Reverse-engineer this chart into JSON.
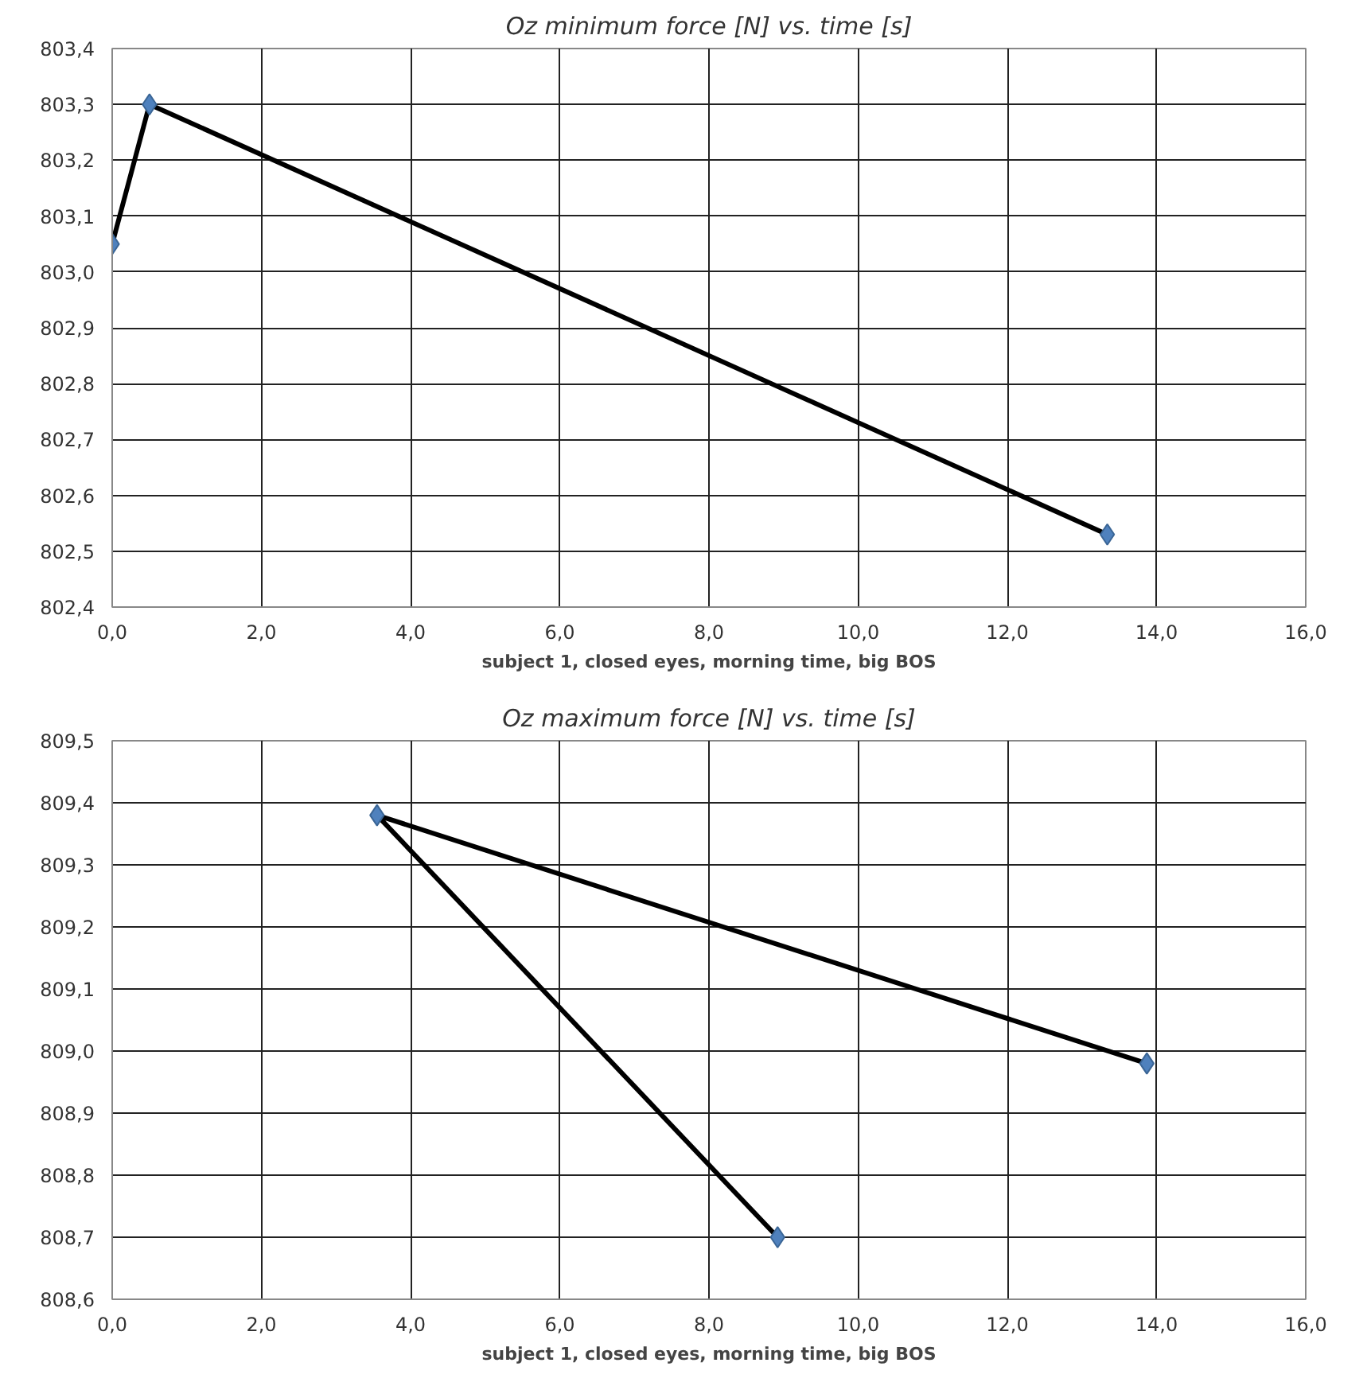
{
  "chart_data": [
    {
      "type": "line",
      "title": "Oz minimum force [N] vs. time [s]",
      "xlabel": "subject 1, closed eyes, morning time, big BOS",
      "series": [
        {
          "color": "#000000",
          "x": [
            0.0,
            0.5,
            13.34
          ],
          "values": [
            803.05,
            803.3,
            802.53
          ]
        }
      ],
      "marker": "diamond",
      "grid": true,
      "xlim": [
        0,
        16
      ],
      "xticks": [
        {
          "value": 0,
          "label": "0,0"
        },
        {
          "value": 2,
          "label": "2,0"
        },
        {
          "value": 4,
          "label": "4,0"
        },
        {
          "value": 6,
          "label": "6,0"
        },
        {
          "value": 8,
          "label": "8,0"
        },
        {
          "value": 10,
          "label": "10,0"
        },
        {
          "value": 12,
          "label": "12,0"
        },
        {
          "value": 14,
          "label": "14,0"
        },
        {
          "value": 16,
          "label": "16,0"
        }
      ],
      "ylim": [
        802.4,
        803.4
      ],
      "yticks": [
        {
          "value": 802.4,
          "label": "802,4"
        },
        {
          "value": 802.5,
          "label": "802,5"
        },
        {
          "value": 802.6,
          "label": "802,6"
        },
        {
          "value": 802.7,
          "label": "802,7"
        },
        {
          "value": 802.8,
          "label": "802,8"
        },
        {
          "value": 802.9,
          "label": "802,9"
        },
        {
          "value": 803.0,
          "label": "803,0"
        },
        {
          "value": 803.1,
          "label": "803,1"
        },
        {
          "value": 803.2,
          "label": "803,2"
        },
        {
          "value": 803.3,
          "label": "803,3"
        },
        {
          "value": 803.4,
          "label": "803,4"
        }
      ]
    },
    {
      "type": "line",
      "title": "Oz maximum force [N] vs. time [s]",
      "xlabel": "subject 1, closed eyes, morning time, big BOS",
      "series": [
        {
          "color": "#000000",
          "x": [
            13.87,
            3.55,
            8.92
          ],
          "values": [
            808.98,
            809.38,
            808.7
          ]
        }
      ],
      "marker": "diamond",
      "grid": true,
      "xlim": [
        0,
        16
      ],
      "xticks": [
        {
          "value": 0,
          "label": "0,0"
        },
        {
          "value": 2,
          "label": "2,0"
        },
        {
          "value": 4,
          "label": "4,0"
        },
        {
          "value": 6,
          "label": "6,0"
        },
        {
          "value": 8,
          "label": "8,0"
        },
        {
          "value": 10,
          "label": "10,0"
        },
        {
          "value": 12,
          "label": "12,0"
        },
        {
          "value": 14,
          "label": "14,0"
        },
        {
          "value": 16,
          "label": "16,0"
        }
      ],
      "ylim": [
        808.6,
        809.5
      ],
      "yticks": [
        {
          "value": 808.6,
          "label": "808,6"
        },
        {
          "value": 808.7,
          "label": "808,7"
        },
        {
          "value": 808.8,
          "label": "808,8"
        },
        {
          "value": 808.9,
          "label": "808,9"
        },
        {
          "value": 809.0,
          "label": "809,0"
        },
        {
          "value": 809.1,
          "label": "809,1"
        },
        {
          "value": 809.2,
          "label": "809,2"
        },
        {
          "value": 809.3,
          "label": "809,3"
        },
        {
          "value": 809.4,
          "label": "809,4"
        },
        {
          "value": 809.5,
          "label": "809,5"
        }
      ]
    }
  ]
}
